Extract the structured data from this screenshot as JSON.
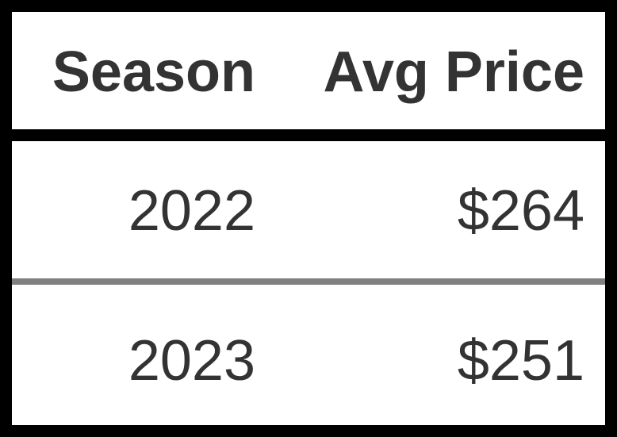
{
  "chart_data": {
    "type": "table",
    "columns": [
      "Season",
      "Avg Price"
    ],
    "rows": [
      [
        "2022",
        "$264"
      ],
      [
        "2023",
        "$251"
      ]
    ]
  },
  "colors": {
    "text": "#333333",
    "background": "#ffffff",
    "border": "#000000",
    "row_divider": "#808080"
  }
}
